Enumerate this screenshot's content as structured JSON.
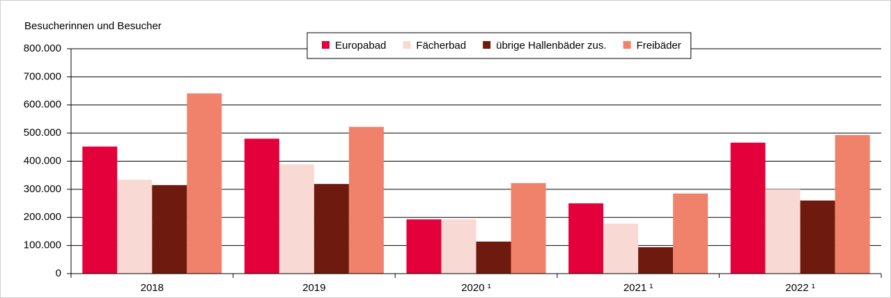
{
  "chart_data": {
    "type": "bar",
    "y_label": "Besucherinnen und Besucher",
    "categories": [
      "2018",
      "2019",
      "2020 ¹",
      "2021 ¹",
      "2022 ¹"
    ],
    "series": [
      {
        "name": "Europabad",
        "color": "#e4003a",
        "values": [
          452000,
          480000,
          193000,
          250000,
          466000
        ]
      },
      {
        "name": "Fächerbad",
        "color": "#f9d9d3",
        "values": [
          334000,
          389000,
          193000,
          178000,
          300000
        ]
      },
      {
        "name": "übrige Hallenbäder zus.",
        "color": "#6e1a0e",
        "values": [
          315000,
          319000,
          114000,
          94000,
          260000
        ]
      },
      {
        "name": "Freibäder",
        "color": "#f0826b",
        "values": [
          641000,
          522000,
          322000,
          285000,
          493000
        ]
      }
    ],
    "ylim": [
      0,
      800000
    ],
    "yticks": [
      0,
      {
        "value": 100000,
        "label": "100.000"
      },
      {
        "value": 200000,
        "label": "200.000"
      },
      {
        "value": 300000,
        "label": "300.000"
      },
      {
        "value": 400000,
        "label": "400.000"
      },
      {
        "value": 500000,
        "label": "500.000"
      },
      {
        "value": 600000,
        "label": "600.000"
      },
      {
        "value": 700000,
        "label": "700.000"
      },
      {
        "value": 800000,
        "label": "800.000"
      }
    ],
    "grid": true,
    "legend": "top"
  }
}
